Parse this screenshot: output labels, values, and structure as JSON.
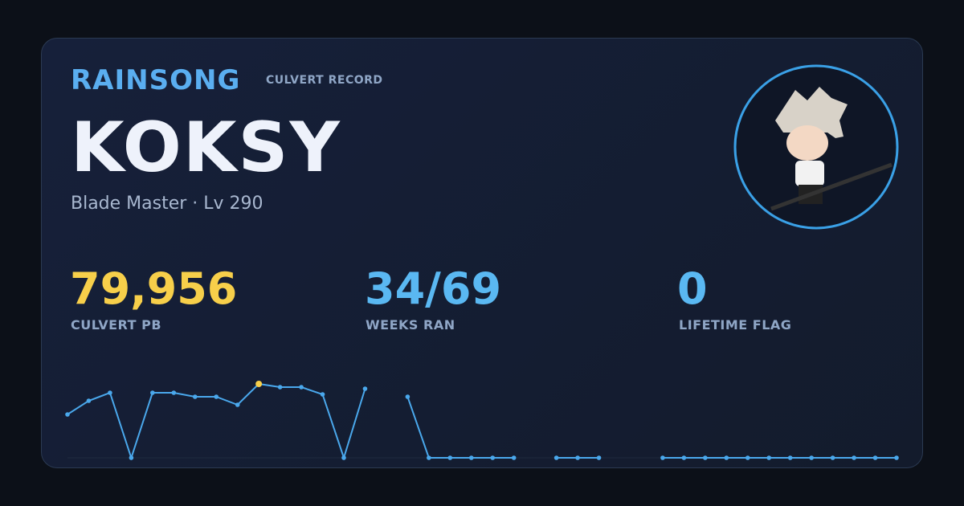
{
  "header": {
    "brand": "RAINSONG",
    "subtitle": "CULVERT RECORD"
  },
  "player": {
    "name": "KOKSY",
    "info": "Blade Master · Lv 290"
  },
  "stats": [
    {
      "value": "79,956",
      "label": "CULVERT PB",
      "color": "#f7cf4a"
    },
    {
      "value": "34/69",
      "label": "WEEKS RAN",
      "color": "#5ab8f2"
    },
    {
      "value": "0",
      "label": "LIFETIME FLAG",
      "color": "#5ab8f2"
    }
  ],
  "chart_data": {
    "type": "line",
    "color": "#4aa8ec",
    "highlight_color": "#f7cf4a",
    "values": [
      46931,
      61700,
      70400,
      0,
      70400,
      70400,
      66050,
      66050,
      57360,
      79956,
      76480,
      76480,
      68660,
      0,
      74740,
      null,
      66050,
      0,
      0,
      0,
      0,
      0,
      null,
      0,
      0,
      0,
      null,
      null,
      0,
      0,
      0,
      0,
      0,
      0,
      0,
      0,
      0,
      0,
      0,
      0
    ]
  }
}
